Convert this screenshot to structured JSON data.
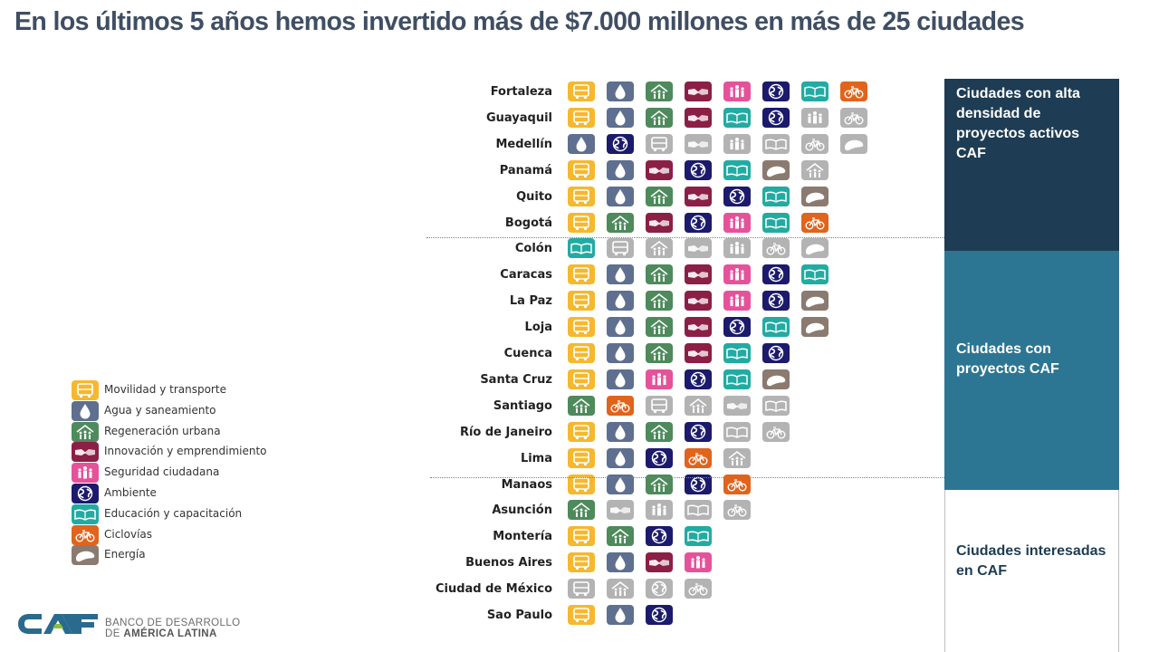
{
  "title": "En los últimos 5 años hemos invertido más de $7.000 millones en más de 25 ciudades",
  "colors": {
    "mov": "#f5b82e",
    "agua": "#5e6f8f",
    "regen": "#4e8a5c",
    "innov": "#8c1f45",
    "seg": "#e6529a",
    "amb": "#1b1a6c",
    "edu": "#22aba2",
    "cic": "#e0641b",
    "ene": "#8b7a70",
    "gray": "#b3b3b3",
    "panel_alta": "#1e3c53",
    "panel_con": "#2d7693",
    "panel_int_text": "#1e3c53"
  },
  "legend": [
    {
      "type": "mov",
      "label": "Movilidad y transporte"
    },
    {
      "type": "agua",
      "label": "Agua y saneamiento"
    },
    {
      "type": "regen",
      "label": "Regeneración urbana"
    },
    {
      "type": "innov",
      "label": "Innovación y emprendimiento"
    },
    {
      "type": "seg",
      "label": "Seguridad ciudadana"
    },
    {
      "type": "amb",
      "label": "Ambiente"
    },
    {
      "type": "edu",
      "label": "Educación y capacitación"
    },
    {
      "type": "cic",
      "label": "Ciclovías"
    },
    {
      "type": "ene",
      "label": "Energía"
    }
  ],
  "cities": [
    {
      "name": "Fortaleza",
      "icons": [
        [
          "mov",
          false
        ],
        [
          "agua",
          false
        ],
        [
          "regen",
          false
        ],
        [
          "innov",
          false
        ],
        [
          "seg",
          false
        ],
        [
          "amb",
          false
        ],
        [
          "edu",
          false
        ],
        [
          "cic",
          false
        ]
      ]
    },
    {
      "name": "Guayaquil",
      "icons": [
        [
          "mov",
          false
        ],
        [
          "agua",
          false
        ],
        [
          "regen",
          false
        ],
        [
          "innov",
          false
        ],
        [
          "edu",
          false
        ],
        [
          "amb",
          false
        ],
        [
          "seg",
          true
        ],
        [
          "cic",
          true
        ]
      ]
    },
    {
      "name": "Medellín",
      "icons": [
        [
          "agua",
          false
        ],
        [
          "amb",
          false
        ],
        [
          "mov",
          true
        ],
        [
          "innov",
          true
        ],
        [
          "seg",
          true
        ],
        [
          "edu",
          true
        ],
        [
          "cic",
          true
        ],
        [
          "ene",
          true
        ]
      ]
    },
    {
      "name": "Panamá",
      "icons": [
        [
          "mov",
          false
        ],
        [
          "agua",
          false
        ],
        [
          "innov",
          false
        ],
        [
          "amb",
          false
        ],
        [
          "edu",
          false
        ],
        [
          "ene",
          false
        ],
        [
          "regen",
          true
        ]
      ]
    },
    {
      "name": "Quito",
      "icons": [
        [
          "mov",
          false
        ],
        [
          "agua",
          false
        ],
        [
          "regen",
          false
        ],
        [
          "innov",
          false
        ],
        [
          "amb",
          false
        ],
        [
          "edu",
          false
        ],
        [
          "ene",
          false
        ]
      ]
    },
    {
      "name": "Bogotá",
      "icons": [
        [
          "mov",
          false
        ],
        [
          "regen",
          false
        ],
        [
          "innov",
          false
        ],
        [
          "amb",
          false
        ],
        [
          "seg",
          false
        ],
        [
          "edu",
          false
        ],
        [
          "cic",
          false
        ]
      ]
    },
    {
      "name": "Colón",
      "icons": [
        [
          "edu",
          false
        ],
        [
          "mov",
          true
        ],
        [
          "regen",
          true
        ],
        [
          "innov",
          true
        ],
        [
          "seg",
          true
        ],
        [
          "cic",
          true
        ],
        [
          "ene",
          true
        ]
      ]
    },
    {
      "name": "Caracas",
      "icons": [
        [
          "mov",
          false
        ],
        [
          "agua",
          false
        ],
        [
          "regen",
          false
        ],
        [
          "innov",
          false
        ],
        [
          "seg",
          false
        ],
        [
          "amb",
          false
        ],
        [
          "edu",
          false
        ]
      ]
    },
    {
      "name": "La Paz",
      "icons": [
        [
          "mov",
          false
        ],
        [
          "agua",
          false
        ],
        [
          "regen",
          false
        ],
        [
          "innov",
          false
        ],
        [
          "seg",
          false
        ],
        [
          "amb",
          false
        ],
        [
          "ene",
          false
        ]
      ]
    },
    {
      "name": "Loja",
      "icons": [
        [
          "mov",
          false
        ],
        [
          "agua",
          false
        ],
        [
          "regen",
          false
        ],
        [
          "innov",
          false
        ],
        [
          "amb",
          false
        ],
        [
          "edu",
          false
        ],
        [
          "ene",
          false
        ]
      ]
    },
    {
      "name": "Cuenca",
      "icons": [
        [
          "mov",
          false
        ],
        [
          "agua",
          false
        ],
        [
          "regen",
          false
        ],
        [
          "innov",
          false
        ],
        [
          "edu",
          false
        ],
        [
          "amb",
          false
        ]
      ]
    },
    {
      "name": "Santa Cruz",
      "icons": [
        [
          "mov",
          false
        ],
        [
          "agua",
          false
        ],
        [
          "seg",
          false
        ],
        [
          "amb",
          false
        ],
        [
          "edu",
          false
        ],
        [
          "ene",
          false
        ]
      ]
    },
    {
      "name": "Santiago",
      "icons": [
        [
          "regen",
          false
        ],
        [
          "cic",
          false
        ],
        [
          "mov",
          true
        ],
        [
          "regen",
          true
        ],
        [
          "innov",
          true
        ],
        [
          "edu",
          true
        ]
      ]
    },
    {
      "name": "Río de Janeiro",
      "icons": [
        [
          "mov",
          false
        ],
        [
          "agua",
          false
        ],
        [
          "regen",
          false
        ],
        [
          "amb",
          false
        ],
        [
          "edu",
          true
        ],
        [
          "cic",
          true
        ]
      ]
    },
    {
      "name": "Lima",
      "icons": [
        [
          "mov",
          false
        ],
        [
          "agua",
          false
        ],
        [
          "amb",
          false
        ],
        [
          "cic",
          false
        ],
        [
          "regen",
          true
        ]
      ]
    },
    {
      "name": "Manaos",
      "icons": [
        [
          "mov",
          false
        ],
        [
          "agua",
          false
        ],
        [
          "regen",
          false
        ],
        [
          "amb",
          false
        ],
        [
          "cic",
          false
        ]
      ]
    },
    {
      "name": "Asunción",
      "icons": [
        [
          "regen",
          false
        ],
        [
          "innov",
          true
        ],
        [
          "seg",
          true
        ],
        [
          "edu",
          true
        ],
        [
          "cic",
          true
        ]
      ]
    },
    {
      "name": "Montería",
      "icons": [
        [
          "mov",
          false
        ],
        [
          "regen",
          false
        ],
        [
          "amb",
          false
        ],
        [
          "edu",
          false
        ]
      ]
    },
    {
      "name": "Buenos Aires",
      "icons": [
        [
          "mov",
          false
        ],
        [
          "agua",
          false
        ],
        [
          "innov",
          false
        ],
        [
          "seg",
          false
        ]
      ]
    },
    {
      "name": "Ciudad de México",
      "icons": [
        [
          "mov",
          true
        ],
        [
          "regen",
          true
        ],
        [
          "amb",
          true
        ],
        [
          "cic",
          true
        ]
      ]
    },
    {
      "name": "Sao Paulo",
      "icons": [
        [
          "mov",
          false
        ],
        [
          "agua",
          false
        ],
        [
          "amb",
          false
        ]
      ]
    }
  ],
  "panels": [
    {
      "label": "Ciudades con alta densidad de proyectos activos CAF"
    },
    {
      "label": "Ciudades con proyectos CAF"
    },
    {
      "label": "Ciudades interesadas en CAF"
    }
  ],
  "logo": {
    "mark": "CAF",
    "line1": "BANCO DE DESARROLLO",
    "line2_prefix": "DE ",
    "line2_bold": "AMÉRICA LATINA"
  }
}
